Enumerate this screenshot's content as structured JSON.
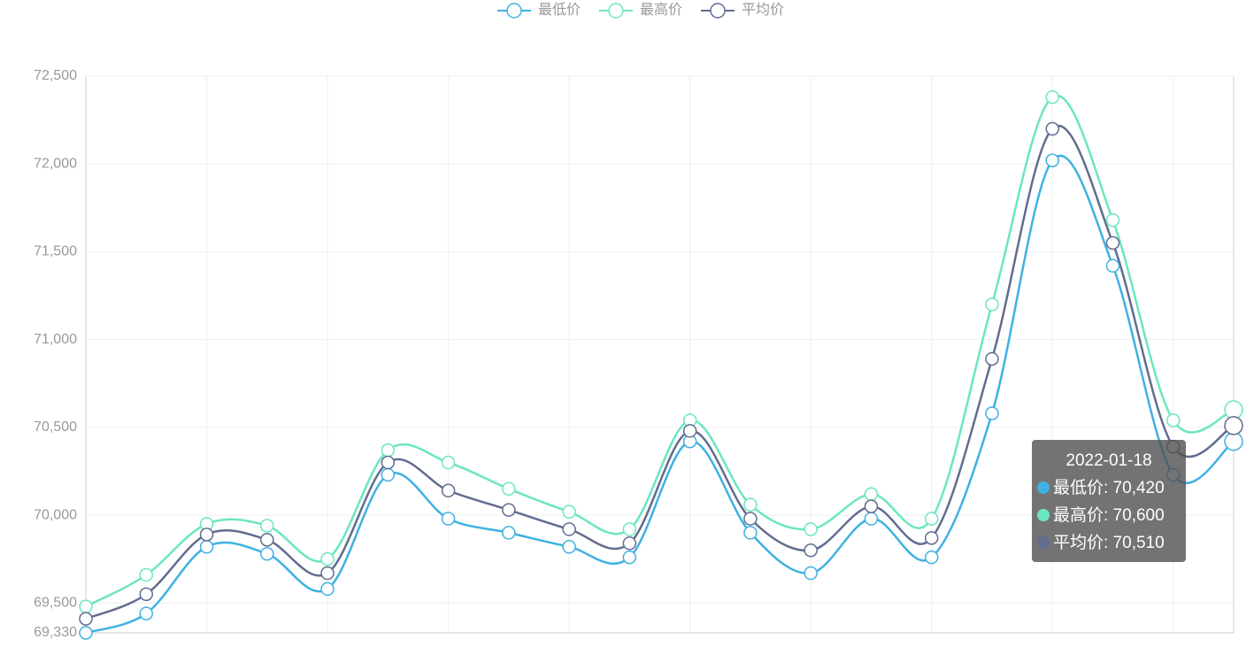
{
  "chart_data": {
    "type": "line",
    "categories": [
      null,
      null,
      null,
      null,
      null,
      null,
      null,
      null,
      null,
      null,
      null,
      null,
      null,
      null,
      null,
      null,
      null,
      null,
      null,
      null
    ],
    "series": [
      {
        "name": "最低价",
        "color": "#3fb1e3",
        "values": [
          69330,
          69440,
          69820,
          69780,
          69580,
          70230,
          69980,
          69900,
          69820,
          69760,
          70420,
          69900,
          69670,
          69980,
          69760,
          70580,
          72020,
          71420,
          70230,
          70420
        ]
      },
      {
        "name": "最高价",
        "color": "#6be6c1",
        "values": [
          69480,
          69660,
          69950,
          69940,
          69750,
          70370,
          70300,
          70150,
          70020,
          69920,
          70540,
          70060,
          69920,
          70120,
          69980,
          71200,
          72380,
          71680,
          70540,
          70600
        ]
      },
      {
        "name": "平均价",
        "color": "#626c91",
        "values": [
          69410,
          69550,
          69890,
          69860,
          69670,
          70300,
          70140,
          70030,
          69920,
          69840,
          70480,
          69980,
          69800,
          70050,
          69870,
          70890,
          72200,
          71550,
          70390,
          70510
        ]
      }
    ],
    "ylim": [
      69330,
      72500
    ],
    "yticks": [
      {
        "value": 69330,
        "label": "69,330"
      },
      {
        "value": 69500,
        "label": "69,500"
      },
      {
        "value": 70000,
        "label": "70,000"
      },
      {
        "value": 70500,
        "label": "70,500"
      },
      {
        "value": 71000,
        "label": "71,000"
      },
      {
        "value": 71500,
        "label": "71,500"
      },
      {
        "value": 72000,
        "label": "72,000"
      },
      {
        "value": 72500,
        "label": "72,500"
      }
    ],
    "grid": true,
    "smooth": true,
    "legend": "top",
    "tooltip": {
      "title": "2022-01-18",
      "items": [
        "最低价: 70,420",
        "最高价: 70,600",
        "平均价: 70,510"
      ]
    }
  }
}
